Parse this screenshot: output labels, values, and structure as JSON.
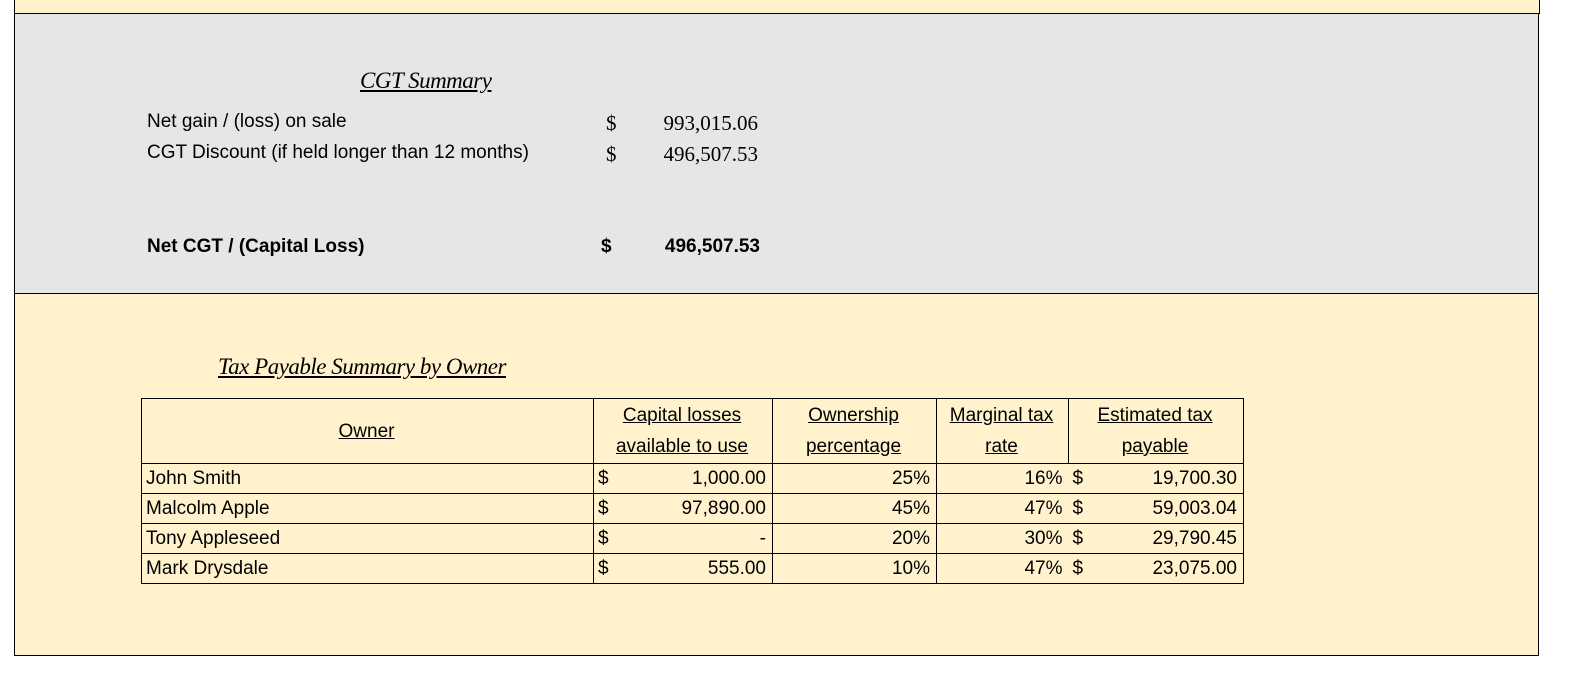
{
  "cgt_summary": {
    "title": "CGT Summary",
    "rows": [
      {
        "label": "Net gain / (loss) on sale",
        "currency": "$",
        "amount": "993,015.06"
      },
      {
        "label": "CGT Discount (if held longer than 12 months)",
        "currency": "$",
        "amount": "496,507.53"
      }
    ],
    "total": {
      "label": "Net CGT / (Capital Loss)",
      "currency": "$",
      "amount": "496,507.53"
    }
  },
  "tax_table": {
    "title": "Tax Payable Summary by Owner",
    "header": [
      "Owner",
      "Capital losses available to use",
      "Ownership percentage",
      "Marginal tax rate",
      "Estimated tax payable"
    ],
    "rows": [
      [
        "John Smith",
        "$",
        "1,000.00",
        "25%",
        "16%",
        "$",
        "19,700.30"
      ],
      [
        "Malcolm Apple",
        "$",
        "97,890.00",
        "45%",
        "47%",
        "$",
        "59,003.04"
      ],
      [
        "Tony Appleseed",
        "$",
        "-",
        "20%",
        "30%",
        "$",
        "29,790.45"
      ],
      [
        "Mark Drysdale",
        "$",
        "555.00",
        "10%",
        "47%",
        "$",
        "23,075.00"
      ]
    ]
  }
}
